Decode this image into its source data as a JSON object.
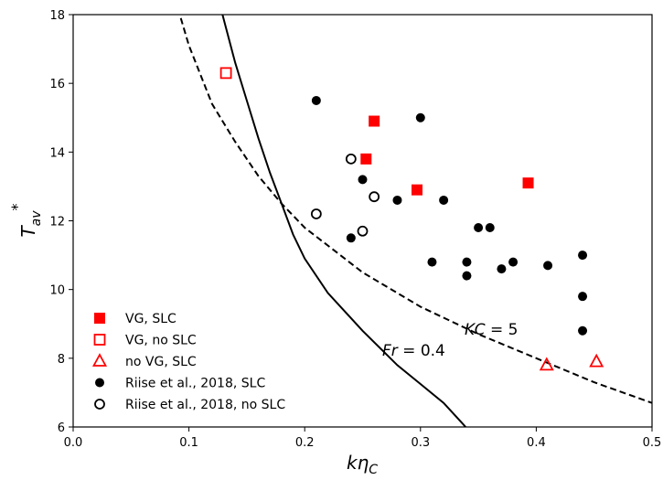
{
  "chart_data": {
    "type": "scatter",
    "title": "",
    "xlabel": "kη_C",
    "ylabel": "T_av*",
    "xlim": [
      0.0,
      0.5
    ],
    "ylim": [
      6,
      18
    ],
    "xticks": [
      "0.0",
      "0.1",
      "0.2",
      "0.3",
      "0.4",
      "0.5"
    ],
    "yticks": [
      "6",
      "8",
      "10",
      "12",
      "14",
      "16",
      "18"
    ],
    "grid": false,
    "legend_position": "bottom-left",
    "series": [
      {
        "name": "VG, SLC",
        "marker": "filled-square",
        "color": "#ff0000",
        "points": [
          [
            0.253,
            13.8
          ],
          [
            0.26,
            14.9
          ],
          [
            0.297,
            12.9
          ],
          [
            0.393,
            13.1
          ]
        ]
      },
      {
        "name": "VG, no SLC",
        "marker": "open-square",
        "color": "#ff0000",
        "points": [
          [
            0.132,
            16.3
          ]
        ]
      },
      {
        "name": "no VG, SLC",
        "marker": "open-triangle",
        "color": "#ff0000",
        "points": [
          [
            0.409,
            7.8
          ],
          [
            0.452,
            7.9
          ]
        ]
      },
      {
        "name": "Riise et al., 2018, SLC",
        "marker": "filled-circle",
        "color": "#000000",
        "points": [
          [
            0.21,
            15.5
          ],
          [
            0.24,
            11.5
          ],
          [
            0.25,
            13.2
          ],
          [
            0.28,
            12.6
          ],
          [
            0.3,
            15.0
          ],
          [
            0.31,
            10.8
          ],
          [
            0.32,
            12.6
          ],
          [
            0.34,
            10.8
          ],
          [
            0.34,
            10.4
          ],
          [
            0.35,
            11.8
          ],
          [
            0.36,
            11.8
          ],
          [
            0.37,
            10.6
          ],
          [
            0.38,
            10.8
          ],
          [
            0.41,
            10.7
          ],
          [
            0.44,
            11.0
          ],
          [
            0.44,
            9.8
          ],
          [
            0.44,
            8.8
          ]
        ]
      },
      {
        "name": "Riise et al., 2018, no SLC",
        "marker": "open-circle",
        "color": "#000000",
        "points": [
          [
            0.21,
            12.2
          ],
          [
            0.24,
            13.8
          ],
          [
            0.25,
            11.7
          ],
          [
            0.26,
            12.7
          ]
        ]
      }
    ],
    "curves": [
      {
        "label_prefix": "Fr",
        "label_value": " = 0.4",
        "style": "solid",
        "color": "#000000",
        "points": [
          [
            0.129,
            18.0
          ],
          [
            0.14,
            16.6
          ],
          [
            0.15,
            15.5
          ],
          [
            0.16,
            14.4
          ],
          [
            0.17,
            13.4
          ],
          [
            0.18,
            12.5
          ],
          [
            0.19,
            11.6
          ],
          [
            0.2,
            10.9
          ],
          [
            0.22,
            9.9
          ],
          [
            0.25,
            8.8
          ],
          [
            0.28,
            7.8
          ],
          [
            0.3,
            7.25
          ],
          [
            0.32,
            6.7
          ],
          [
            0.339,
            6.0
          ]
        ]
      },
      {
        "label_prefix": "KC",
        "label_value": " = 5",
        "style": "dashed",
        "color": "#000000",
        "points": [
          [
            0.093,
            17.9
          ],
          [
            0.1,
            17.1
          ],
          [
            0.12,
            15.4
          ],
          [
            0.14,
            14.3
          ],
          [
            0.16,
            13.3
          ],
          [
            0.18,
            12.5
          ],
          [
            0.2,
            11.8
          ],
          [
            0.25,
            10.5
          ],
          [
            0.3,
            9.5
          ],
          [
            0.35,
            8.7
          ],
          [
            0.4,
            8.0
          ],
          [
            0.45,
            7.3
          ],
          [
            0.5,
            6.7
          ]
        ]
      }
    ]
  }
}
